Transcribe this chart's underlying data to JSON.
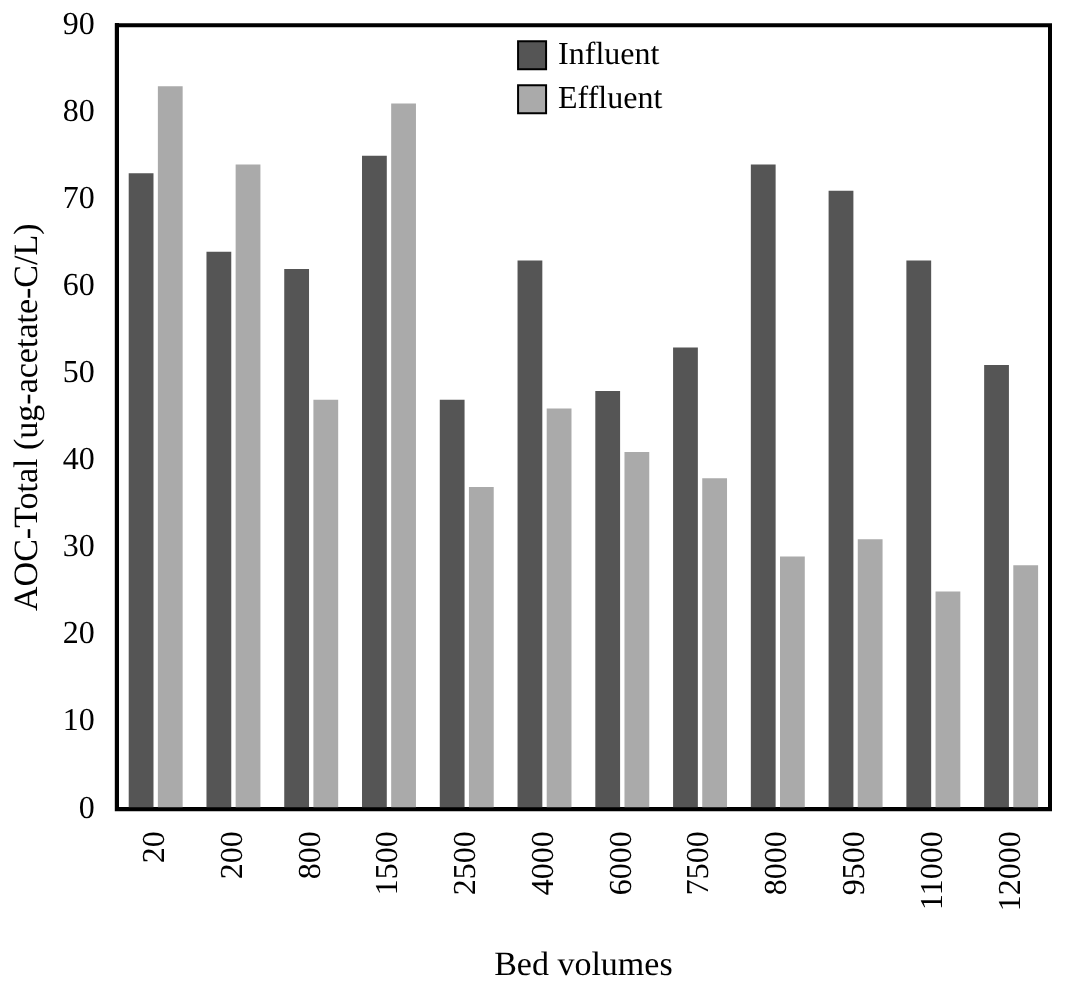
{
  "chart_data": {
    "type": "bar",
    "xlabel": "Bed volumes",
    "ylabel": "AOC-Total (ug-acetate-C/L)",
    "categories": [
      "20",
      "200",
      "800",
      "1500",
      "2500",
      "4000",
      "6000",
      "7500",
      "8000",
      "9500",
      "11000",
      "12000"
    ],
    "series": [
      {
        "name": "Influent",
        "color": "#555555",
        "values": [
          73,
          64,
          62,
          75,
          47,
          63,
          48,
          53,
          74,
          71,
          63,
          51
        ]
      },
      {
        "name": "Effluent",
        "color": "#aaaaaa",
        "values": [
          83,
          74,
          47,
          81,
          37,
          46,
          41,
          38,
          29,
          31,
          25,
          28
        ]
      }
    ],
    "ylim": [
      0,
      90
    ],
    "yticks": [
      0,
      10,
      20,
      30,
      40,
      50,
      60,
      70,
      80,
      90
    ],
    "grid": false,
    "legend": "top"
  }
}
